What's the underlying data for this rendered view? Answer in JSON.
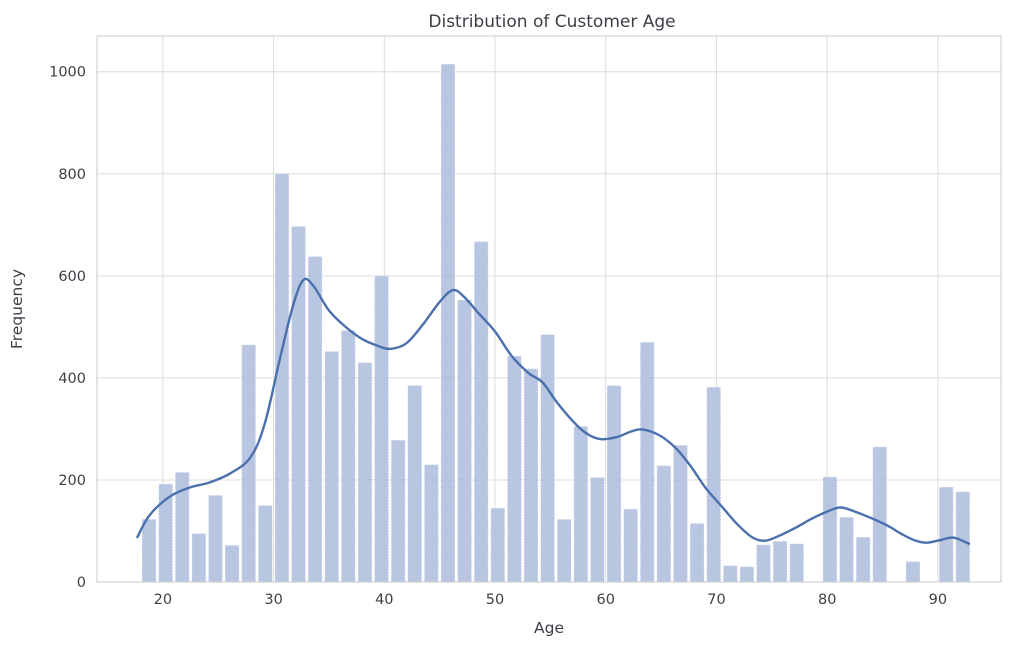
{
  "title": "Distribution of Customer Age",
  "colors": {
    "background": "#ffffff",
    "bar_fill": "#aebede",
    "bar_edge": "#ffffff",
    "kde_line": "#4a70ad",
    "grid": "#dcdcdc",
    "frame": "#cacaca",
    "text": "#3a3e45",
    "tick_text": "#3d4046"
  },
  "chart_data": {
    "type": "bar",
    "subtype": "histogram_with_kde",
    "title": "Distribution of Customer Age",
    "xlabel": "Age",
    "ylabel": "Frequency",
    "bin_start": 18,
    "bin_width": 1.5,
    "counts": [
      123,
      192,
      215,
      95,
      170,
      72,
      465,
      150,
      800,
      697,
      638,
      452,
      493,
      430,
      600,
      278,
      385,
      230,
      1015,
      553,
      667,
      145,
      443,
      418,
      485,
      123,
      305,
      205,
      385,
      143,
      470,
      228,
      268,
      115,
      382,
      32,
      30,
      73,
      80,
      75,
      0,
      206,
      127,
      88,
      265,
      0,
      40,
      0,
      186,
      177
    ],
    "kde_curve": [
      [
        17.7,
        88
      ],
      [
        18.8,
        131
      ],
      [
        20.6,
        167
      ],
      [
        22.4,
        185
      ],
      [
        24.2,
        195
      ],
      [
        26.1,
        213
      ],
      [
        27.9,
        244
      ],
      [
        29.2,
        310
      ],
      [
        30.6,
        440
      ],
      [
        31.8,
        545
      ],
      [
        32.7,
        592
      ],
      [
        33.6,
        580
      ],
      [
        35.0,
        532
      ],
      [
        36.5,
        500
      ],
      [
        38.0,
        476
      ],
      [
        39.5,
        462
      ],
      [
        40.6,
        457
      ],
      [
        42.0,
        468
      ],
      [
        43.5,
        505
      ],
      [
        45.0,
        549
      ],
      [
        46.2,
        572
      ],
      [
        47.2,
        559
      ],
      [
        48.5,
        527
      ],
      [
        50.0,
        491
      ],
      [
        51.5,
        443
      ],
      [
        53.0,
        410
      ],
      [
        54.3,
        391
      ],
      [
        55.6,
        352
      ],
      [
        57.0,
        316
      ],
      [
        58.2,
        292
      ],
      [
        59.5,
        280
      ],
      [
        61.0,
        284
      ],
      [
        62.3,
        295
      ],
      [
        63.3,
        299
      ],
      [
        64.8,
        288
      ],
      [
        66.2,
        265
      ],
      [
        67.6,
        229
      ],
      [
        69.0,
        185
      ],
      [
        70.4,
        150
      ],
      [
        71.8,
        115
      ],
      [
        73.2,
        88
      ],
      [
        74.4,
        81
      ],
      [
        75.8,
        92
      ],
      [
        77.2,
        107
      ],
      [
        78.6,
        124
      ],
      [
        80.0,
        138
      ],
      [
        81.2,
        146
      ],
      [
        82.5,
        138
      ],
      [
        84.0,
        125
      ],
      [
        85.5,
        110
      ],
      [
        86.8,
        93
      ],
      [
        88.0,
        81
      ],
      [
        89.0,
        77
      ],
      [
        90.2,
        82
      ],
      [
        91.4,
        87
      ],
      [
        92.8,
        75
      ]
    ],
    "xticks": [
      20,
      30,
      40,
      50,
      60,
      70,
      80,
      90
    ],
    "yticks": [
      0,
      200,
      400,
      600,
      800,
      1000
    ],
    "xlim": [
      14.05,
      95.7
    ],
    "ylim": [
      0,
      1070
    ],
    "grid": true,
    "legend": false
  }
}
